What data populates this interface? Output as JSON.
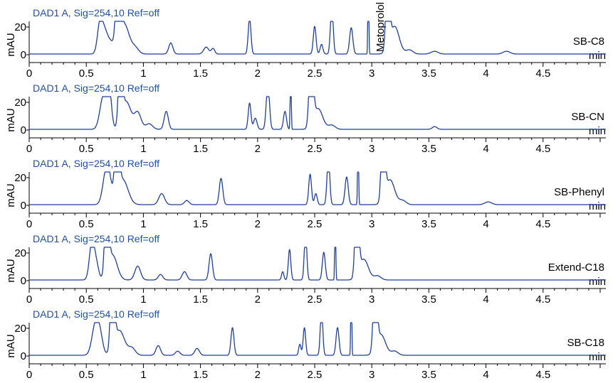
{
  "colors": {
    "trace": "#1f3f9f",
    "title": "#1f4fa8",
    "axis": "#000000"
  },
  "chart_data": [
    {
      "type": "line",
      "title": "DAD1 A, Sig=254,10 Ref=off",
      "panel_label": "SB-C8",
      "annotation": "Metoprolol",
      "xlabel": "min",
      "ylabel": "mAU",
      "xlim": [
        0,
        5.05
      ],
      "x_ticks": [
        0,
        0.5,
        1,
        1.5,
        2,
        2.5,
        3,
        3.5,
        4,
        4.5
      ],
      "x_tick_labels": [
        "0",
        "0.5",
        "1",
        "1.5",
        "2",
        "2.5",
        "3",
        "3.5",
        "4",
        "4.5"
      ],
      "y_ticks": [
        0,
        20
      ],
      "y_tick_labels": [
        "0",
        "20"
      ],
      "ylim": [
        -2,
        45
      ],
      "baseline": 0.5,
      "series": [
        {
          "peaks": [
            [
              0.62,
              22,
              0.022
            ],
            [
              0.66,
              14,
              0.025
            ],
            [
              0.71,
              8,
              0.03
            ],
            [
              0.78,
              70,
              0.018
            ],
            [
              0.83,
              22,
              0.045
            ],
            [
              0.93,
              4,
              0.03
            ],
            [
              1.24,
              8,
              0.018
            ],
            [
              1.55,
              5,
              0.022
            ],
            [
              1.61,
              4,
              0.015
            ],
            [
              1.93,
              26,
              0.012
            ],
            [
              2.5,
              20,
              0.012
            ],
            [
              2.56,
              7,
              0.012
            ],
            [
              2.65,
              35,
              0.012
            ],
            [
              2.82,
              19,
              0.014
            ],
            [
              2.97,
              70,
              0.004
            ],
            [
              3.14,
              70,
              0.015
            ],
            [
              3.2,
              20,
              0.04
            ],
            [
              3.33,
              3,
              0.03
            ],
            [
              3.55,
              2,
              0.03
            ],
            [
              4.18,
              2,
              0.03
            ]
          ]
        }
      ]
    },
    {
      "type": "line",
      "title": "DAD1 A, Sig=254,10 Ref=off",
      "panel_label": "SB-CN",
      "xlabel": "min",
      "ylabel": "mAU",
      "xlim": [
        0,
        5.05
      ],
      "x_ticks": [
        0,
        0.5,
        1,
        1.5,
        2,
        2.5,
        3,
        3.5,
        4,
        4.5
      ],
      "x_tick_labels": [
        "0",
        "0.5",
        "1",
        "1.5",
        "2",
        "2.5",
        "3",
        "3.5",
        "4",
        "4.5"
      ],
      "y_ticks": [
        0,
        20
      ],
      "y_tick_labels": [
        "0",
        "20"
      ],
      "ylim": [
        -2,
        45
      ],
      "baseline": 0.5,
      "series": [
        {
          "peaks": [
            [
              0.65,
              24,
              0.03
            ],
            [
              0.7,
              28,
              0.02
            ],
            [
              0.8,
              70,
              0.015
            ],
            [
              0.85,
              20,
              0.04
            ],
            [
              0.95,
              12,
              0.03
            ],
            [
              1.05,
              4,
              0.03
            ],
            [
              1.2,
              13,
              0.018
            ],
            [
              1.93,
              19,
              0.012
            ],
            [
              1.98,
              8,
              0.015
            ],
            [
              2.09,
              33,
              0.014
            ],
            [
              2.24,
              13,
              0.013
            ],
            [
              2.29,
              70,
              0.004
            ],
            [
              2.47,
              70,
              0.016
            ],
            [
              2.53,
              15,
              0.04
            ],
            [
              2.65,
              3,
              0.03
            ],
            [
              3.55,
              2,
              0.02
            ]
          ]
        }
      ]
    },
    {
      "type": "line",
      "title": "DAD1 A, Sig=254,10 Ref=off",
      "panel_label": "SB-Phenyl",
      "xlabel": "min",
      "ylabel": "mAU",
      "xlim": [
        0,
        5.05
      ],
      "x_ticks": [
        0,
        0.5,
        1,
        1.5,
        2,
        2.5,
        3,
        3.5,
        4,
        4.5
      ],
      "x_tick_labels": [
        "0",
        "0.5",
        "1",
        "1.5",
        "2",
        "2.5",
        "3",
        "3.5",
        "4",
        "4.5"
      ],
      "y_ticks": [
        0,
        20
      ],
      "y_tick_labels": [
        "0",
        "20"
      ],
      "ylim": [
        -2,
        45
      ],
      "baseline": 0.5,
      "series": [
        {
          "peaks": [
            [
              0.67,
              20,
              0.028
            ],
            [
              0.7,
              14,
              0.025
            ],
            [
              0.77,
              70,
              0.017
            ],
            [
              0.82,
              18,
              0.045
            ],
            [
              1.16,
              8,
              0.025
            ],
            [
              1.38,
              3,
              0.02
            ],
            [
              1.68,
              19,
              0.015
            ],
            [
              2.46,
              22,
              0.012
            ],
            [
              2.51,
              8,
              0.012
            ],
            [
              2.62,
              35,
              0.012
            ],
            [
              2.78,
              20,
              0.014
            ],
            [
              2.88,
              70,
              0.004
            ],
            [
              3.1,
              70,
              0.015
            ],
            [
              3.16,
              18,
              0.04
            ],
            [
              3.27,
              3,
              0.03
            ],
            [
              4.02,
              2,
              0.03
            ]
          ]
        }
      ]
    },
    {
      "type": "line",
      "title": "DAD1 A, Sig=254,10 Ref=off",
      "panel_label": "Extend-C18",
      "xlabel": "min",
      "ylabel": "mAU",
      "xlim": [
        0,
        5.05
      ],
      "x_ticks": [
        0,
        0.5,
        1,
        1.5,
        2,
        2.5,
        3,
        3.5,
        4,
        4.5
      ],
      "x_tick_labels": [
        "0",
        "0.5",
        "1",
        "1.5",
        "2",
        "2.5",
        "3",
        "3.5",
        "4",
        "4.5"
      ],
      "y_ticks": [
        0,
        20
      ],
      "y_tick_labels": [
        "0",
        "20"
      ],
      "ylim": [
        -2,
        45
      ],
      "baseline": 0.5,
      "series": [
        {
          "peaks": [
            [
              0.55,
              28,
              0.022
            ],
            [
              0.59,
              10,
              0.02
            ],
            [
              0.68,
              70,
              0.016
            ],
            [
              0.73,
              18,
              0.04
            ],
            [
              0.95,
              10,
              0.025
            ],
            [
              1.15,
              4,
              0.02
            ],
            [
              1.36,
              6,
              0.02
            ],
            [
              1.59,
              19,
              0.015
            ],
            [
              2.22,
              6,
              0.01
            ],
            [
              2.28,
              22,
              0.011
            ],
            [
              2.42,
              35,
              0.011
            ],
            [
              2.58,
              20,
              0.013
            ],
            [
              2.68,
              70,
              0.004
            ],
            [
              2.87,
              70,
              0.015
            ],
            [
              2.93,
              15,
              0.04
            ],
            [
              3.05,
              3,
              0.03
            ]
          ]
        }
      ]
    },
    {
      "type": "line",
      "title": "DAD1 A, Sig=254,10 Ref=off",
      "panel_label": "SB-C18",
      "xlabel": "min",
      "ylabel": "mAU",
      "xlim": [
        0,
        5.05
      ],
      "x_ticks": [
        0,
        0.5,
        1,
        1.5,
        2,
        2.5,
        3,
        3.5,
        4,
        4.5
      ],
      "x_tick_labels": [
        "0",
        "0.5",
        "1",
        "1.5",
        "2",
        "2.5",
        "3",
        "3.5",
        "4",
        "4.5"
      ],
      "y_ticks": [
        0,
        20
      ],
      "y_tick_labels": [
        "0",
        "20"
      ],
      "ylim": [
        -2,
        45
      ],
      "baseline": 0.5,
      "series": [
        {
          "peaks": [
            [
              0.58,
              22,
              0.03
            ],
            [
              0.62,
              12,
              0.025
            ],
            [
              0.73,
              70,
              0.016
            ],
            [
              0.79,
              18,
              0.045
            ],
            [
              0.9,
              5,
              0.03
            ],
            [
              1.13,
              7,
              0.02
            ],
            [
              1.3,
              3,
              0.02
            ],
            [
              1.47,
              5,
              0.02
            ],
            [
              1.78,
              20,
              0.013
            ],
            [
              2.37,
              8,
              0.01
            ],
            [
              2.41,
              20,
              0.011
            ],
            [
              2.56,
              33,
              0.011
            ],
            [
              2.7,
              20,
              0.013
            ],
            [
              2.82,
              70,
              0.004
            ],
            [
              3.03,
              70,
              0.015
            ],
            [
              3.08,
              15,
              0.04
            ],
            [
              3.2,
              3,
              0.03
            ]
          ]
        }
      ]
    }
  ]
}
